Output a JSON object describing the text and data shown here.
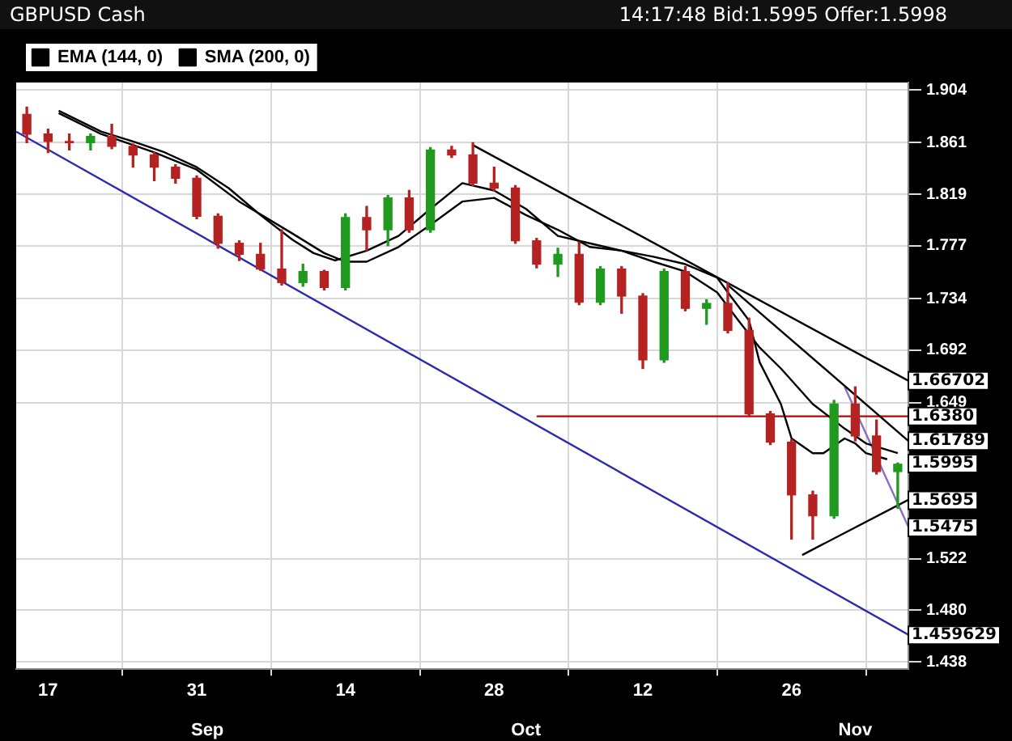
{
  "chart_data": {
    "type": "candlestick",
    "title": "GBPUSD Cash",
    "subtitle": "14:17:48  Bid:1.5995  Offer:1.5998",
    "x": [
      "--08-15",
      "--08-17",
      "--08-19",
      "--08-21",
      "--08-23",
      "--08-25",
      "--08-27",
      "--08-29",
      "--08-31",
      "--09-02",
      "--09-04",
      "--09-06",
      "--09-08",
      "--09-10",
      "--09-12",
      "--09-14",
      "--09-16",
      "--09-18",
      "--09-20",
      "--09-22",
      "--09-24",
      "--09-26",
      "--09-28",
      "--09-30",
      "--10-02",
      "--10-04",
      "--10-06",
      "--10-08",
      "--10-10",
      "--10-12",
      "--10-14",
      "--10-16",
      "--10-18",
      "--10-20",
      "--10-22",
      "--10-24",
      "--10-26",
      "--10-28",
      "--10-30",
      "--11-01",
      "--11-03",
      "--11-05"
    ],
    "ohlc": [
      [
        1.884,
        1.89,
        1.861,
        1.868
      ],
      [
        1.868,
        1.872,
        1.853,
        1.862
      ],
      [
        1.862,
        1.868,
        1.855,
        1.861
      ],
      [
        1.861,
        1.868,
        1.855,
        1.866
      ],
      [
        1.866,
        1.876,
        1.856,
        1.858
      ],
      [
        1.858,
        1.86,
        1.841,
        1.851
      ],
      [
        1.851,
        1.853,
        1.83,
        1.841
      ],
      [
        1.841,
        1.843,
        1.828,
        1.832
      ],
      [
        1.832,
        1.834,
        1.799,
        1.801
      ],
      [
        1.801,
        1.803,
        1.775,
        1.779
      ],
      [
        1.779,
        1.781,
        1.765,
        1.77
      ],
      [
        1.77,
        1.779,
        1.757,
        1.758
      ],
      [
        1.758,
        1.79,
        1.745,
        1.747
      ],
      [
        1.747,
        1.762,
        1.744,
        1.756
      ],
      [
        1.756,
        1.757,
        1.741,
        1.743
      ],
      [
        1.743,
        1.803,
        1.741,
        1.8
      ],
      [
        1.8,
        1.809,
        1.773,
        1.79
      ],
      [
        1.79,
        1.818,
        1.777,
        1.816
      ],
      [
        1.816,
        1.822,
        1.788,
        1.79
      ],
      [
        1.79,
        1.857,
        1.788,
        1.855
      ],
      [
        1.855,
        1.858,
        1.849,
        1.851
      ],
      [
        1.851,
        1.861,
        1.826,
        1.828
      ],
      [
        1.828,
        1.841,
        1.822,
        1.824
      ],
      [
        1.824,
        1.826,
        1.779,
        1.781
      ],
      [
        1.781,
        1.783,
        1.759,
        1.762
      ],
      [
        1.762,
        1.775,
        1.752,
        1.77
      ],
      [
        1.77,
        1.78,
        1.729,
        1.731
      ],
      [
        1.731,
        1.76,
        1.729,
        1.758
      ],
      [
        1.758,
        1.76,
        1.722,
        1.736
      ],
      [
        1.736,
        1.738,
        1.677,
        1.684
      ],
      [
        1.684,
        1.758,
        1.682,
        1.756
      ],
      [
        1.756,
        1.76,
        1.724,
        1.726
      ],
      [
        1.726,
        1.733,
        1.713,
        1.73
      ],
      [
        1.73,
        1.747,
        1.706,
        1.708
      ],
      [
        1.708,
        1.718,
        1.638,
        1.64
      ],
      [
        1.64,
        1.642,
        1.615,
        1.617
      ],
      [
        1.617,
        1.619,
        1.538,
        1.574
      ],
      [
        1.574,
        1.577,
        1.538,
        1.557
      ],
      [
        1.557,
        1.651,
        1.555,
        1.648
      ],
      [
        1.648,
        1.662,
        1.618,
        1.622
      ],
      [
        1.622,
        1.635,
        1.591,
        1.593
      ],
      [
        1.593,
        1.6,
        1.563,
        1.599
      ]
    ],
    "series": [
      {
        "type": "line",
        "name": "EMA (144, 0)",
        "color": "#000000",
        "x": [
          "--08-18",
          "--08-22",
          "--08-25",
          "--08-28",
          "--08-31",
          "--09-03",
          "--09-06",
          "--09-09",
          "--09-11",
          "--09-13",
          "--09-16",
          "--09-19",
          "--09-22",
          "--09-25",
          "--09-28",
          "--10-01",
          "--10-04",
          "--10-07",
          "--10-10",
          "--10-13",
          "--10-16",
          "--10-19",
          "--10-20",
          "--10-22",
          "--10-23",
          "--10-25",
          "--10-26",
          "--10-28",
          "--10-29",
          "--10-31",
          "--11-01",
          "--11-02",
          "--11-04"
        ],
        "values": [
          1.887,
          1.87,
          1.862,
          1.853,
          1.841,
          1.824,
          1.802,
          1.782,
          1.771,
          1.765,
          1.773,
          1.785,
          1.807,
          1.828,
          1.822,
          1.807,
          1.785,
          1.779,
          1.773,
          1.768,
          1.762,
          1.751,
          1.739,
          1.716,
          1.682,
          1.648,
          1.62,
          1.608,
          1.608,
          1.62,
          1.616,
          1.608,
          1.603
        ]
      },
      {
        "type": "line",
        "name": "SMA (200, 0)",
        "color": "#000000",
        "x": [
          "--08-18",
          "--08-22",
          "--08-27",
          "--08-31",
          "--09-04",
          "--09-09",
          "--09-12",
          "--09-14",
          "--09-16",
          "--09-19",
          "--09-22",
          "--09-25",
          "--09-28",
          "--10-01",
          "--10-04",
          "--10-07",
          "--10-10",
          "--10-13",
          "--10-16",
          "--10-19",
          "--10-21",
          "--10-23",
          "--10-25",
          "--10-28",
          "--10-31",
          "--11-02",
          "--11-05"
        ],
        "values": [
          1.885,
          1.868,
          1.853,
          1.839,
          1.813,
          1.787,
          1.771,
          1.764,
          1.764,
          1.776,
          1.794,
          1.813,
          1.816,
          1.802,
          1.79,
          1.776,
          1.773,
          1.764,
          1.756,
          1.739,
          1.716,
          1.694,
          1.677,
          1.648,
          1.628,
          1.616,
          1.608
        ]
      },
      {
        "type": "line",
        "color": "#2a2ab0",
        "x": [
          "--08-14",
          "--11-06"
        ],
        "values": [
          1.87,
          1.46
        ]
      },
      {
        "type": "line",
        "color": "#000000",
        "x": [
          "--09-26",
          "--11-06"
        ],
        "values": [
          1.859,
          1.667
        ]
      },
      {
        "type": "line",
        "color": "#000000",
        "x": [
          "--10-20",
          "--11-06"
        ],
        "values": [
          1.745,
          1.618
        ]
      },
      {
        "type": "line",
        "color": "#000000",
        "x": [
          "--10-27",
          "--11-06"
        ],
        "values": [
          1.525,
          1.57
        ]
      },
      {
        "type": "line",
        "color": "#8a70c0",
        "x": [
          "--10-31",
          "--11-06"
        ],
        "values": [
          1.662,
          1.548
        ]
      },
      {
        "type": "line",
        "color": "#c00000",
        "x": [
          "--10-02",
          "--11-06"
        ],
        "values": [
          1.638,
          1.638
        ]
      }
    ],
    "xlim": [
      "--08-14",
      "--11-06"
    ],
    "xticks": [
      {
        "value": "--08-17",
        "label": "17"
      },
      {
        "value": "--08-31",
        "label": "31"
      },
      {
        "value": "--09-14",
        "label": "14"
      },
      {
        "value": "--09-28",
        "label": "28"
      },
      {
        "value": "--10-12",
        "label": "12"
      },
      {
        "value": "--10-26",
        "label": "26"
      }
    ],
    "x2lim": [
      "--08-14",
      "--11-06"
    ],
    "x2ticks": [
      {
        "value": "--09-01",
        "label": "Sep"
      },
      {
        "value": "--10-01",
        "label": "Oct"
      },
      {
        "value": "--11-01",
        "label": "Nov"
      }
    ],
    "ylim": [
      1.432,
      1.91
    ],
    "yticks": [
      1.904,
      1.861,
      1.819,
      1.777,
      1.734,
      1.692,
      1.649,
      1.522,
      {
        "value": 1.48,
        "label": "1.480"
      },
      1.438
    ],
    "annotations": [
      {
        "text": "1.66702",
        "x": "--11-06",
        "y": 1.66702
      },
      {
        "text": "1.6380",
        "x": "--11-06",
        "y": 1.638
      },
      {
        "text": "1.61789",
        "x": "--11-06",
        "y": 1.61789
      },
      {
        "text": "1.5995",
        "x": "--11-06",
        "y": 1.5995
      },
      {
        "text": "1.5695",
        "x": "--11-06",
        "y": 1.5695
      },
      {
        "text": "1.5475",
        "x": "--11-06",
        "y": 1.5475
      },
      {
        "text": "1.459629",
        "x": "--11-06",
        "y": 1.459629
      }
    ],
    "grid": true,
    "legend": "top left"
  }
}
